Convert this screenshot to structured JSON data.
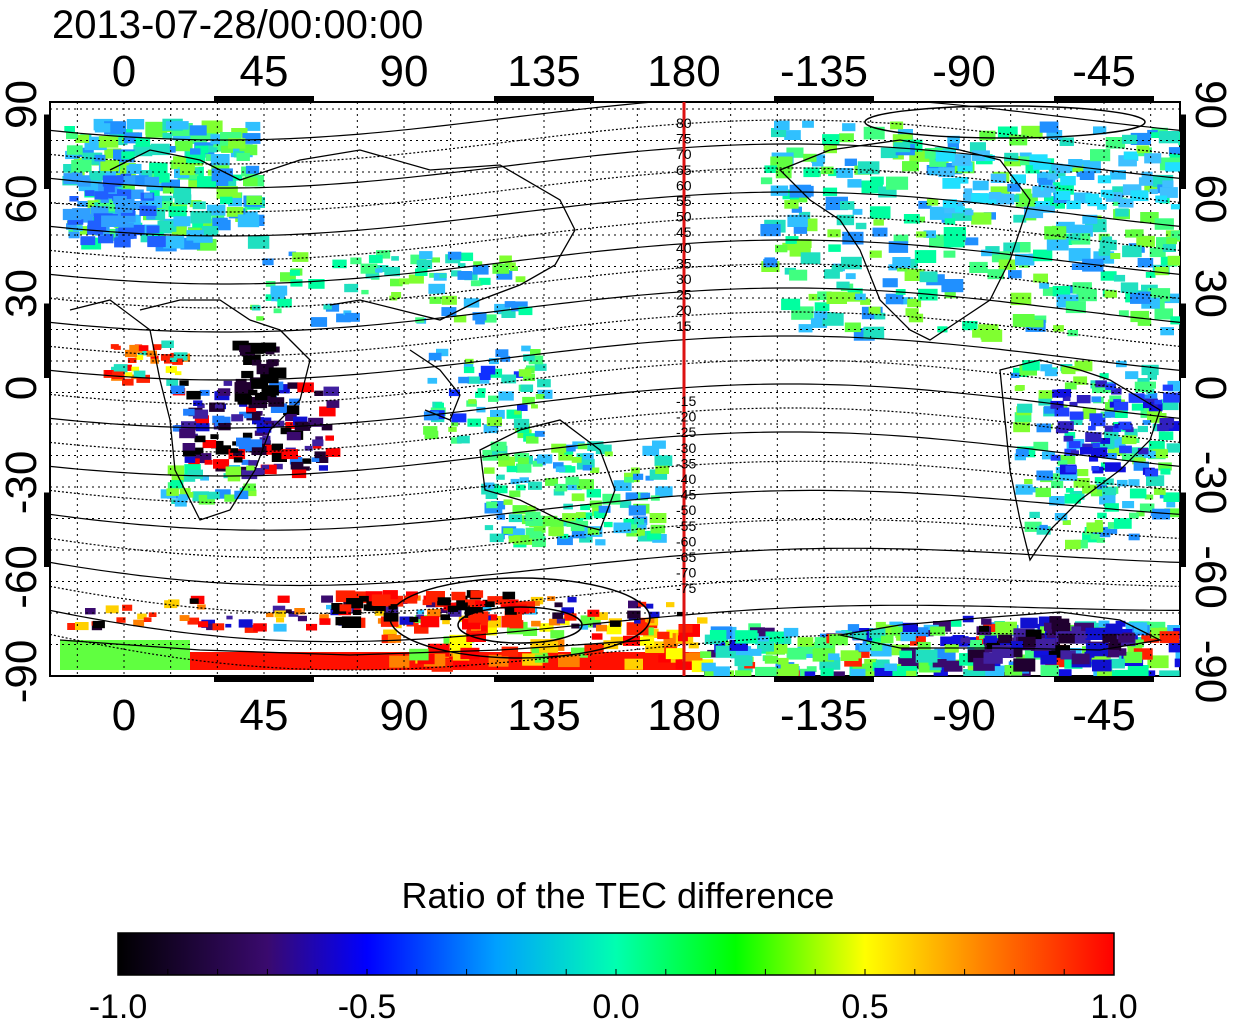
{
  "title": "2013-07-28/00:00:00",
  "map": {
    "top_lon_labels": [
      "0",
      "45",
      "90",
      "135",
      "180",
      "-135",
      "-90",
      "-45"
    ],
    "bottom_lon_labels": [
      "0",
      "45",
      "90",
      "135",
      "180",
      "-135",
      "-90",
      "-45"
    ],
    "left_lat_labels": [
      "90",
      "60",
      "30",
      "0",
      "-30",
      "-60",
      "-90"
    ],
    "right_lat_labels": [
      "90",
      "60",
      "30",
      "0",
      "-30",
      "-60",
      "-90"
    ],
    "meridian_marker_lon": 180,
    "meridian_marker_color": "#dd1111",
    "contour_labels_north": [
      "80",
      "75",
      "70",
      "65",
      "60",
      "55",
      "50",
      "45",
      "40",
      "35",
      "30",
      "25",
      "20",
      "15"
    ],
    "contour_labels_south": [
      "-15",
      "-20",
      "-25",
      "-30",
      "-35",
      "-40",
      "-45",
      "-50",
      "-55",
      "-60",
      "-65",
      "-70",
      "-75"
    ]
  },
  "colorbar": {
    "title": "Ratio of the TEC difference",
    "tick_labels": [
      "-1.0",
      "-0.5",
      "0.0",
      "0.5",
      "1.0"
    ],
    "range": [
      -1.0,
      1.0
    ],
    "colors": [
      "#000000",
      "#3a0a6e",
      "#0000ff",
      "#00c8ff",
      "#00ff80",
      "#00ff00",
      "#ffff00",
      "#ff8000",
      "#ff0000"
    ]
  }
}
